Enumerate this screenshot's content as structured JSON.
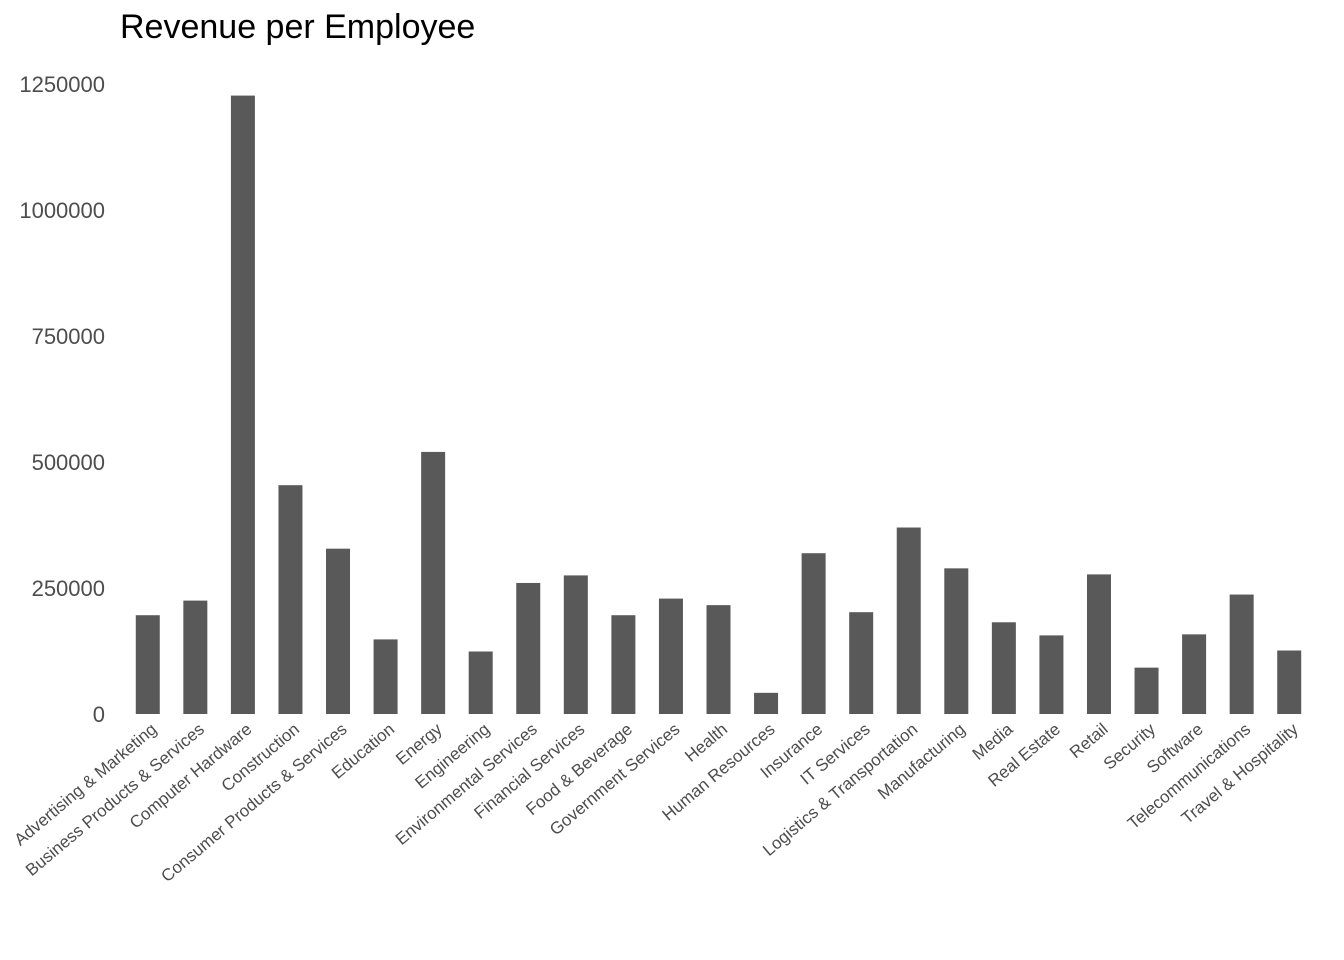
{
  "chart_data": {
    "type": "bar",
    "title": "Revenue per Employee",
    "xlabel": "",
    "ylabel": "",
    "ylim": [
      0,
      1300000
    ],
    "yticks": [
      "0",
      "250000",
      "500000",
      "750000",
      "1000000",
      "1250000"
    ],
    "ytick_values": [
      0,
      250000,
      500000,
      750000,
      1000000,
      1250000
    ],
    "grid": false,
    "bar_color": "#595959",
    "categories": [
      "Advertising & Marketing",
      "Business Products & Services",
      "Computer Hardware",
      "Construction",
      "Consumer Products & Services",
      "Education",
      "Energy",
      "Engineering",
      "Environmental Services",
      "Financial Services",
      "Food & Beverage",
      "Government Services",
      "Health",
      "Human Resources",
      "Insurance",
      "IT Services",
      "Logistics & Transportation",
      "Manufacturing",
      "Media",
      "Real Estate",
      "Retail",
      "Security",
      "Software",
      "Telecommunications",
      "Travel & Hospitality"
    ],
    "values": [
      196000,
      225000,
      1227000,
      454000,
      328000,
      148000,
      520000,
      124000,
      260000,
      275000,
      196000,
      229000,
      216000,
      42000,
      319000,
      202000,
      370000,
      289000,
      182000,
      156000,
      277000,
      92000,
      158000,
      237000,
      126000
    ]
  }
}
